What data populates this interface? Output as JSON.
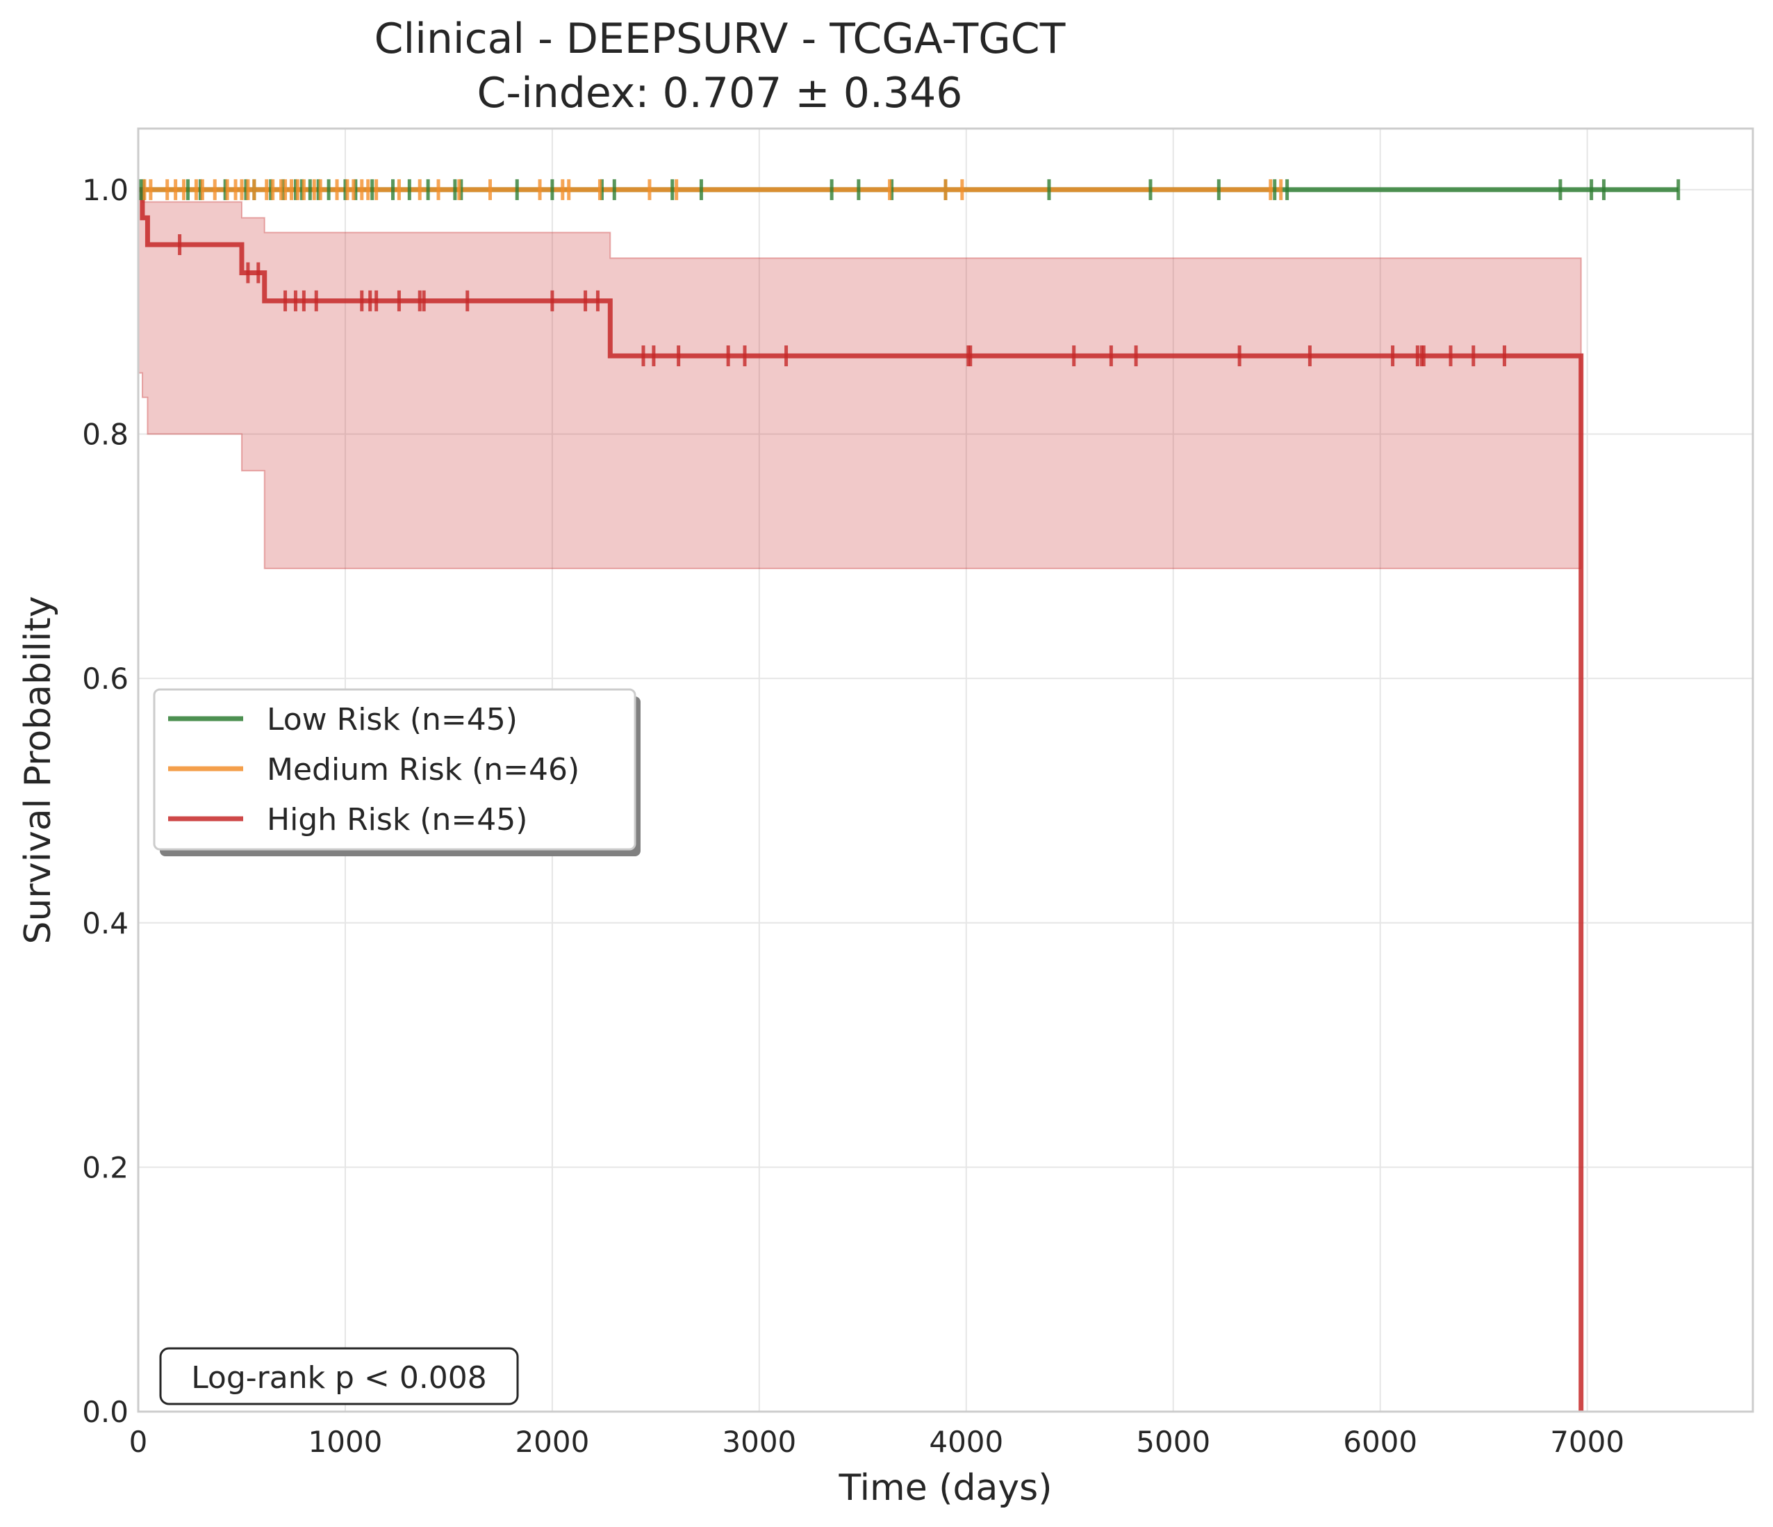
{
  "chart_data": {
    "type": "line",
    "subtype": "kaplan-meier",
    "title_line1": "Clinical - DEEPSURV - TCGA-TGCT",
    "title_line2": "C-index: 0.707 ± 0.346",
    "xlabel": "Time (days)",
    "ylabel": "Survival Probability",
    "xlim": [
      0,
      7800
    ],
    "ylim": [
      0,
      1.05
    ],
    "xticks": [
      0,
      1000,
      2000,
      3000,
      4000,
      5000,
      6000,
      7000
    ],
    "yticks": [
      0.0,
      0.2,
      0.4,
      0.6,
      0.8,
      1.0
    ],
    "xtick_labels": [
      "0",
      "1000",
      "2000",
      "3000",
      "4000",
      "5000",
      "6000",
      "7000"
    ],
    "ytick_labels": [
      "0.0",
      "0.2",
      "0.4",
      "0.6",
      "0.8",
      "1.0"
    ],
    "grid": true,
    "legend_position": "center-left",
    "annotation": "Log-rank p < 0.008",
    "series": [
      {
        "name": "Low Risk (n=45)",
        "color": "#2e7d32",
        "steps": [
          [
            0,
            1.0
          ],
          [
            7440,
            1.0
          ]
        ],
        "censor_times": [
          10,
          25,
          240,
          300,
          420,
          520,
          560,
          640,
          700,
          760,
          790,
          830,
          870,
          920,
          1000,
          1050,
          1130,
          1230,
          1310,
          1400,
          1530,
          1560,
          1830,
          2000,
          2240,
          2300,
          2580,
          2720,
          3350,
          3480,
          3640,
          3900,
          4400,
          4890,
          5220,
          5490,
          5550,
          6870,
          7020,
          7080,
          7440
        ]
      },
      {
        "name": "Medium Risk (n=46)",
        "color": "#f28e2b",
        "steps": [
          [
            0,
            1.0
          ],
          [
            5520,
            1.0
          ]
        ],
        "censor_times": [
          30,
          60,
          140,
          180,
          220,
          280,
          310,
          370,
          430,
          470,
          500,
          530,
          560,
          620,
          650,
          690,
          710,
          740,
          770,
          800,
          850,
          880,
          960,
          1010,
          1040,
          1080,
          1110,
          1150,
          1260,
          1360,
          1450,
          1550,
          1700,
          1940,
          2050,
          2080,
          2230,
          2470,
          2600,
          3630,
          3900,
          3980,
          5470,
          5520
        ]
      },
      {
        "name": "High Risk (n=45)",
        "color": "#c62828",
        "steps": [
          [
            0,
            1.0
          ],
          [
            20,
            0.977
          ],
          [
            45,
            0.955
          ],
          [
            500,
            0.932
          ],
          [
            610,
            0.909
          ],
          [
            2280,
            0.864
          ],
          [
            6970,
            0.0
          ]
        ],
        "ci_steps": [
          [
            0,
            1.0,
            1.0
          ],
          [
            20,
            0.85,
            0.99
          ],
          [
            45,
            0.83,
            0.99
          ],
          [
            500,
            0.8,
            0.977
          ],
          [
            610,
            0.77,
            0.965
          ],
          [
            2280,
            0.69,
            0.944
          ],
          [
            6970,
            0.69,
            0.944
          ]
        ],
        "censor_times": [
          200,
          530,
          580,
          710,
          760,
          800,
          860,
          1080,
          1120,
          1150,
          1260,
          1360,
          1380,
          1590,
          2000,
          2160,
          2220,
          2440,
          2490,
          2610,
          2850,
          2930,
          3130,
          4010,
          4020,
          4520,
          4700,
          4820,
          5320,
          5660,
          6060,
          6180,
          6200,
          6210,
          6340,
          6450,
          6600
        ]
      }
    ]
  }
}
